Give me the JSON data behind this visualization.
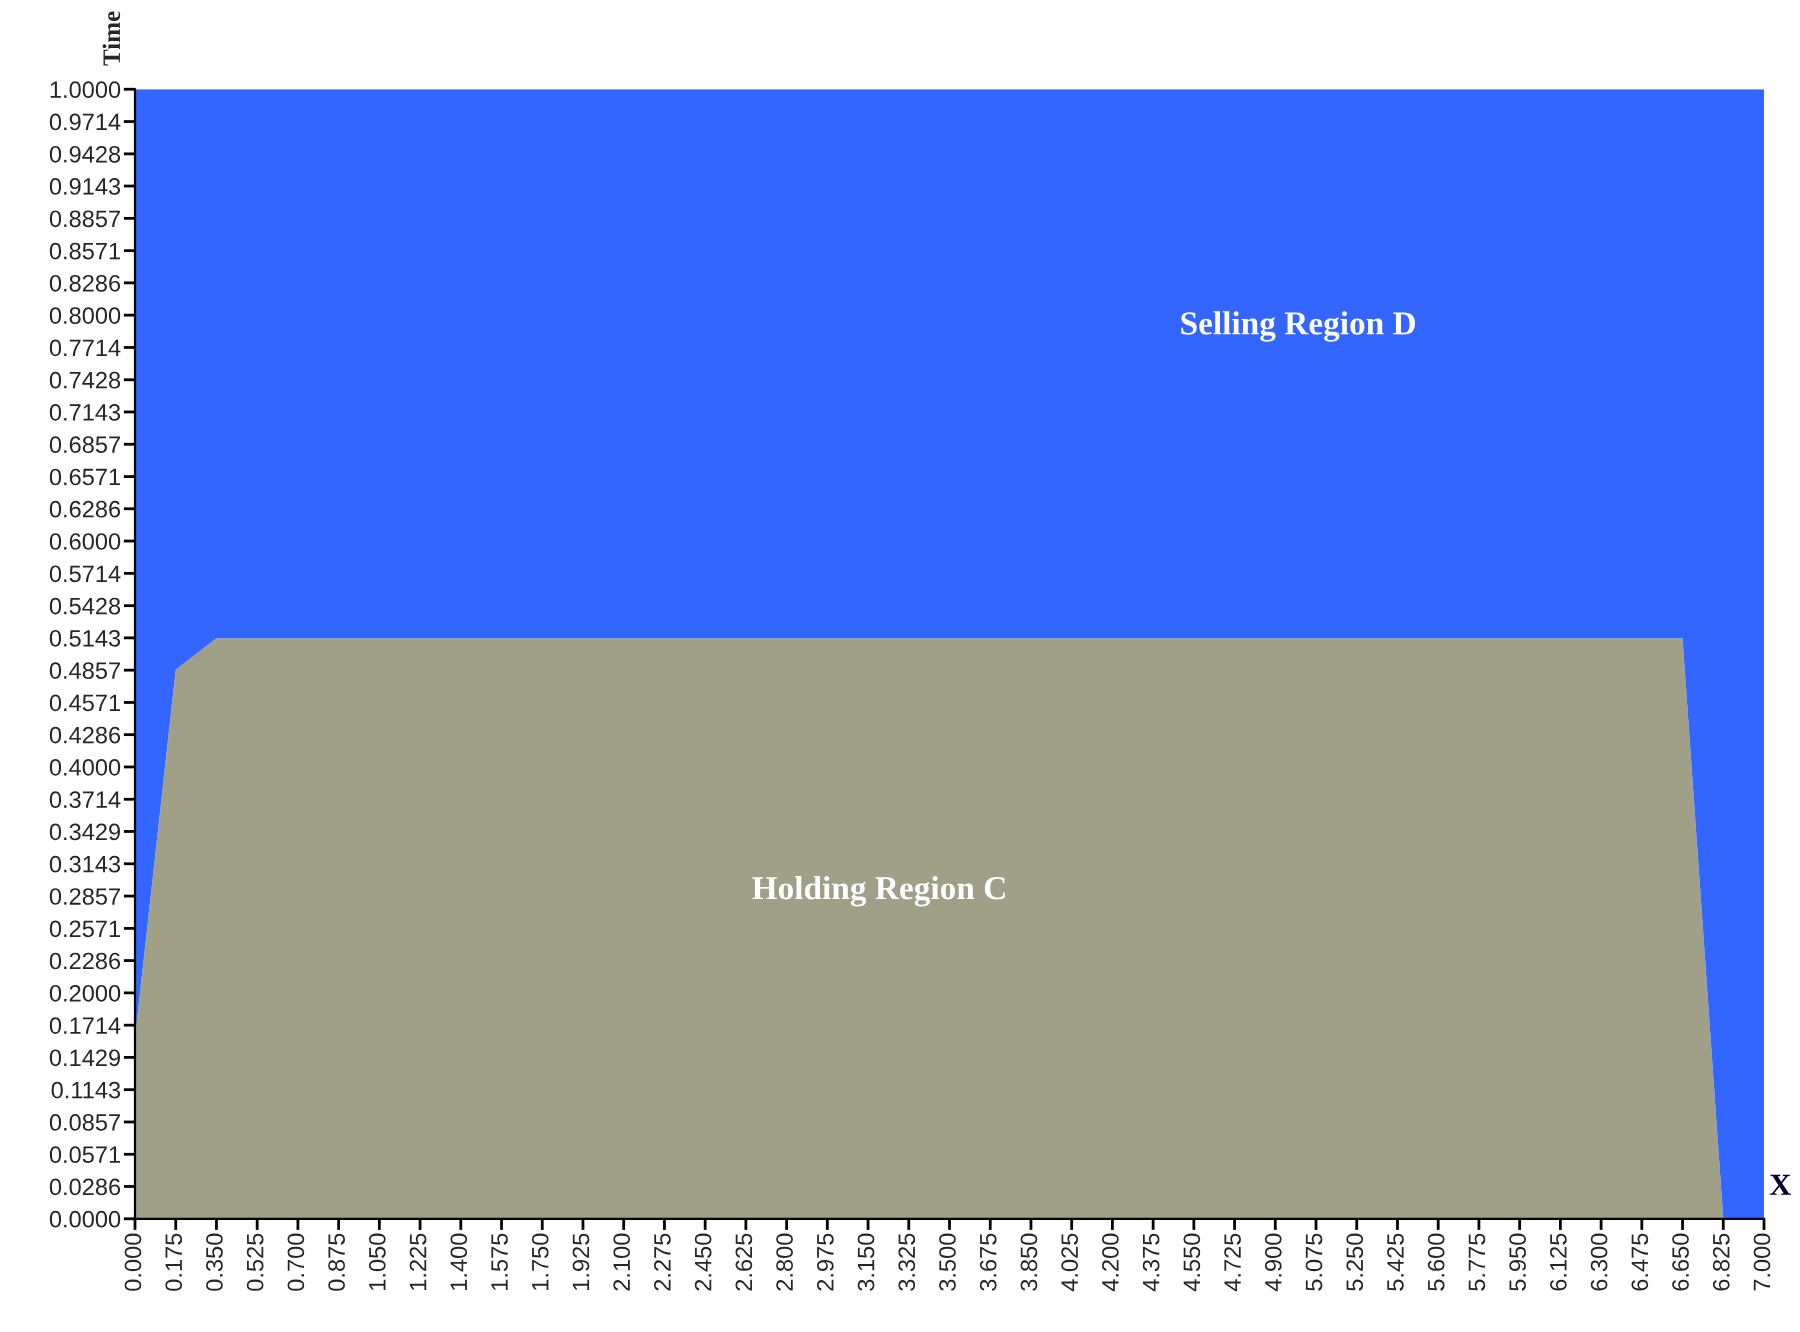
{
  "chart_data": {
    "type": "area",
    "xlabel": "X",
    "ylabel": "Time",
    "x": [
      0,
      0.175,
      0.35,
      6.65,
      6.825,
      7
    ],
    "stacked": true,
    "series": [
      {
        "color": "#a0a088",
        "values": [
          0.16,
          0.486,
          0.514,
          0.514,
          0,
          0
        ]
      },
      {
        "color": "#3366ff",
        "values": [
          0.84,
          0.514,
          0.486,
          0.486,
          1,
          1
        ]
      }
    ],
    "annotations": [
      "Selling Region D",
      "Holding Region C"
    ],
    "xlim": [
      0,
      7
    ],
    "ylim": [
      0,
      1
    ],
    "xticks": [
      {
        "value": 0,
        "label": "0.000"
      },
      {
        "value": 0.175,
        "label": "0.175"
      },
      {
        "value": 0.35,
        "label": "0.350"
      },
      {
        "value": 0.525,
        "label": "0.525"
      },
      {
        "value": 0.7,
        "label": "0.700"
      },
      {
        "value": 0.875,
        "label": "0.875"
      },
      {
        "value": 1.05,
        "label": "1.050"
      },
      {
        "value": 1.225,
        "label": "1.225"
      },
      {
        "value": 1.4,
        "label": "1.400"
      },
      {
        "value": 1.575,
        "label": "1.575"
      },
      {
        "value": 1.75,
        "label": "1.750"
      },
      {
        "value": 1.925,
        "label": "1.925"
      },
      {
        "value": 2.1,
        "label": "2.100"
      },
      {
        "value": 2.275,
        "label": "2.275"
      },
      {
        "value": 2.45,
        "label": "2.450"
      },
      {
        "value": 2.625,
        "label": "2.625"
      },
      {
        "value": 2.8,
        "label": "2.800"
      },
      {
        "value": 2.975,
        "label": "2.975"
      },
      {
        "value": 3.15,
        "label": "3.150"
      },
      {
        "value": 3.325,
        "label": "3.325"
      },
      {
        "value": 3.5,
        "label": "3.500"
      },
      {
        "value": 3.675,
        "label": "3.675"
      },
      {
        "value": 3.85,
        "label": "3.850"
      },
      {
        "value": 4.025,
        "label": "4.025"
      },
      {
        "value": 4.2,
        "label": "4.200"
      },
      {
        "value": 4.375,
        "label": "4.375"
      },
      {
        "value": 4.55,
        "label": "4.550"
      },
      {
        "value": 4.725,
        "label": "4.725"
      },
      {
        "value": 4.9,
        "label": "4.900"
      },
      {
        "value": 5.075,
        "label": "5.075"
      },
      {
        "value": 5.25,
        "label": "5.250"
      },
      {
        "value": 5.425,
        "label": "5.425"
      },
      {
        "value": 5.6,
        "label": "5.600"
      },
      {
        "value": 5.775,
        "label": "5.775"
      },
      {
        "value": 5.95,
        "label": "5.950"
      },
      {
        "value": 6.125,
        "label": "6.125"
      },
      {
        "value": 6.3,
        "label": "6.300"
      },
      {
        "value": 6.475,
        "label": "6.475"
      },
      {
        "value": 6.65,
        "label": "6.650"
      },
      {
        "value": 6.825,
        "label": "6.825"
      },
      {
        "value": 7,
        "label": "7.000"
      }
    ],
    "yticks": [
      {
        "value": 0,
        "label": "0.0000"
      },
      {
        "value": 0.0286,
        "label": "0.0286"
      },
      {
        "value": 0.0571,
        "label": "0.0571"
      },
      {
        "value": 0.0857,
        "label": "0.0857"
      },
      {
        "value": 0.1143,
        "label": "0.1143"
      },
      {
        "value": 0.1429,
        "label": "0.1429"
      },
      {
        "value": 0.1714,
        "label": "0.1714"
      },
      {
        "value": 0.2,
        "label": "0.2000"
      },
      {
        "value": 0.2286,
        "label": "0.2286"
      },
      {
        "value": 0.2571,
        "label": "0.2571"
      },
      {
        "value": 0.2857,
        "label": "0.2857"
      },
      {
        "value": 0.3143,
        "label": "0.3143"
      },
      {
        "value": 0.3429,
        "label": "0.3429"
      },
      {
        "value": 0.3714,
        "label": "0.3714"
      },
      {
        "value": 0.4,
        "label": "0.4000"
      },
      {
        "value": 0.4286,
        "label": "0.4286"
      },
      {
        "value": 0.4571,
        "label": "0.4571"
      },
      {
        "value": 0.4857,
        "label": "0.4857"
      },
      {
        "value": 0.5143,
        "label": "0.5143"
      },
      {
        "value": 0.5428,
        "label": "0.5428"
      },
      {
        "value": 0.5714,
        "label": "0.5714"
      },
      {
        "value": 0.6,
        "label": "0.6000"
      },
      {
        "value": 0.6286,
        "label": "0.6286"
      },
      {
        "value": 0.6571,
        "label": "0.6571"
      },
      {
        "value": 0.6857,
        "label": "0.6857"
      },
      {
        "value": 0.7143,
        "label": "0.7143"
      },
      {
        "value": 0.7428,
        "label": "0.7428"
      },
      {
        "value": 0.7714,
        "label": "0.7714"
      },
      {
        "value": 0.8,
        "label": "0.8000"
      },
      {
        "value": 0.8286,
        "label": "0.8286"
      },
      {
        "value": 0.8571,
        "label": "0.8571"
      },
      {
        "value": 0.8857,
        "label": "0.8857"
      },
      {
        "value": 0.9143,
        "label": "0.9143"
      },
      {
        "value": 0.9428,
        "label": "0.9428"
      },
      {
        "value": 0.9714,
        "label": "0.9714"
      },
      {
        "value": 1,
        "label": "1.0000"
      }
    ],
    "grid": false,
    "legend": false
  }
}
